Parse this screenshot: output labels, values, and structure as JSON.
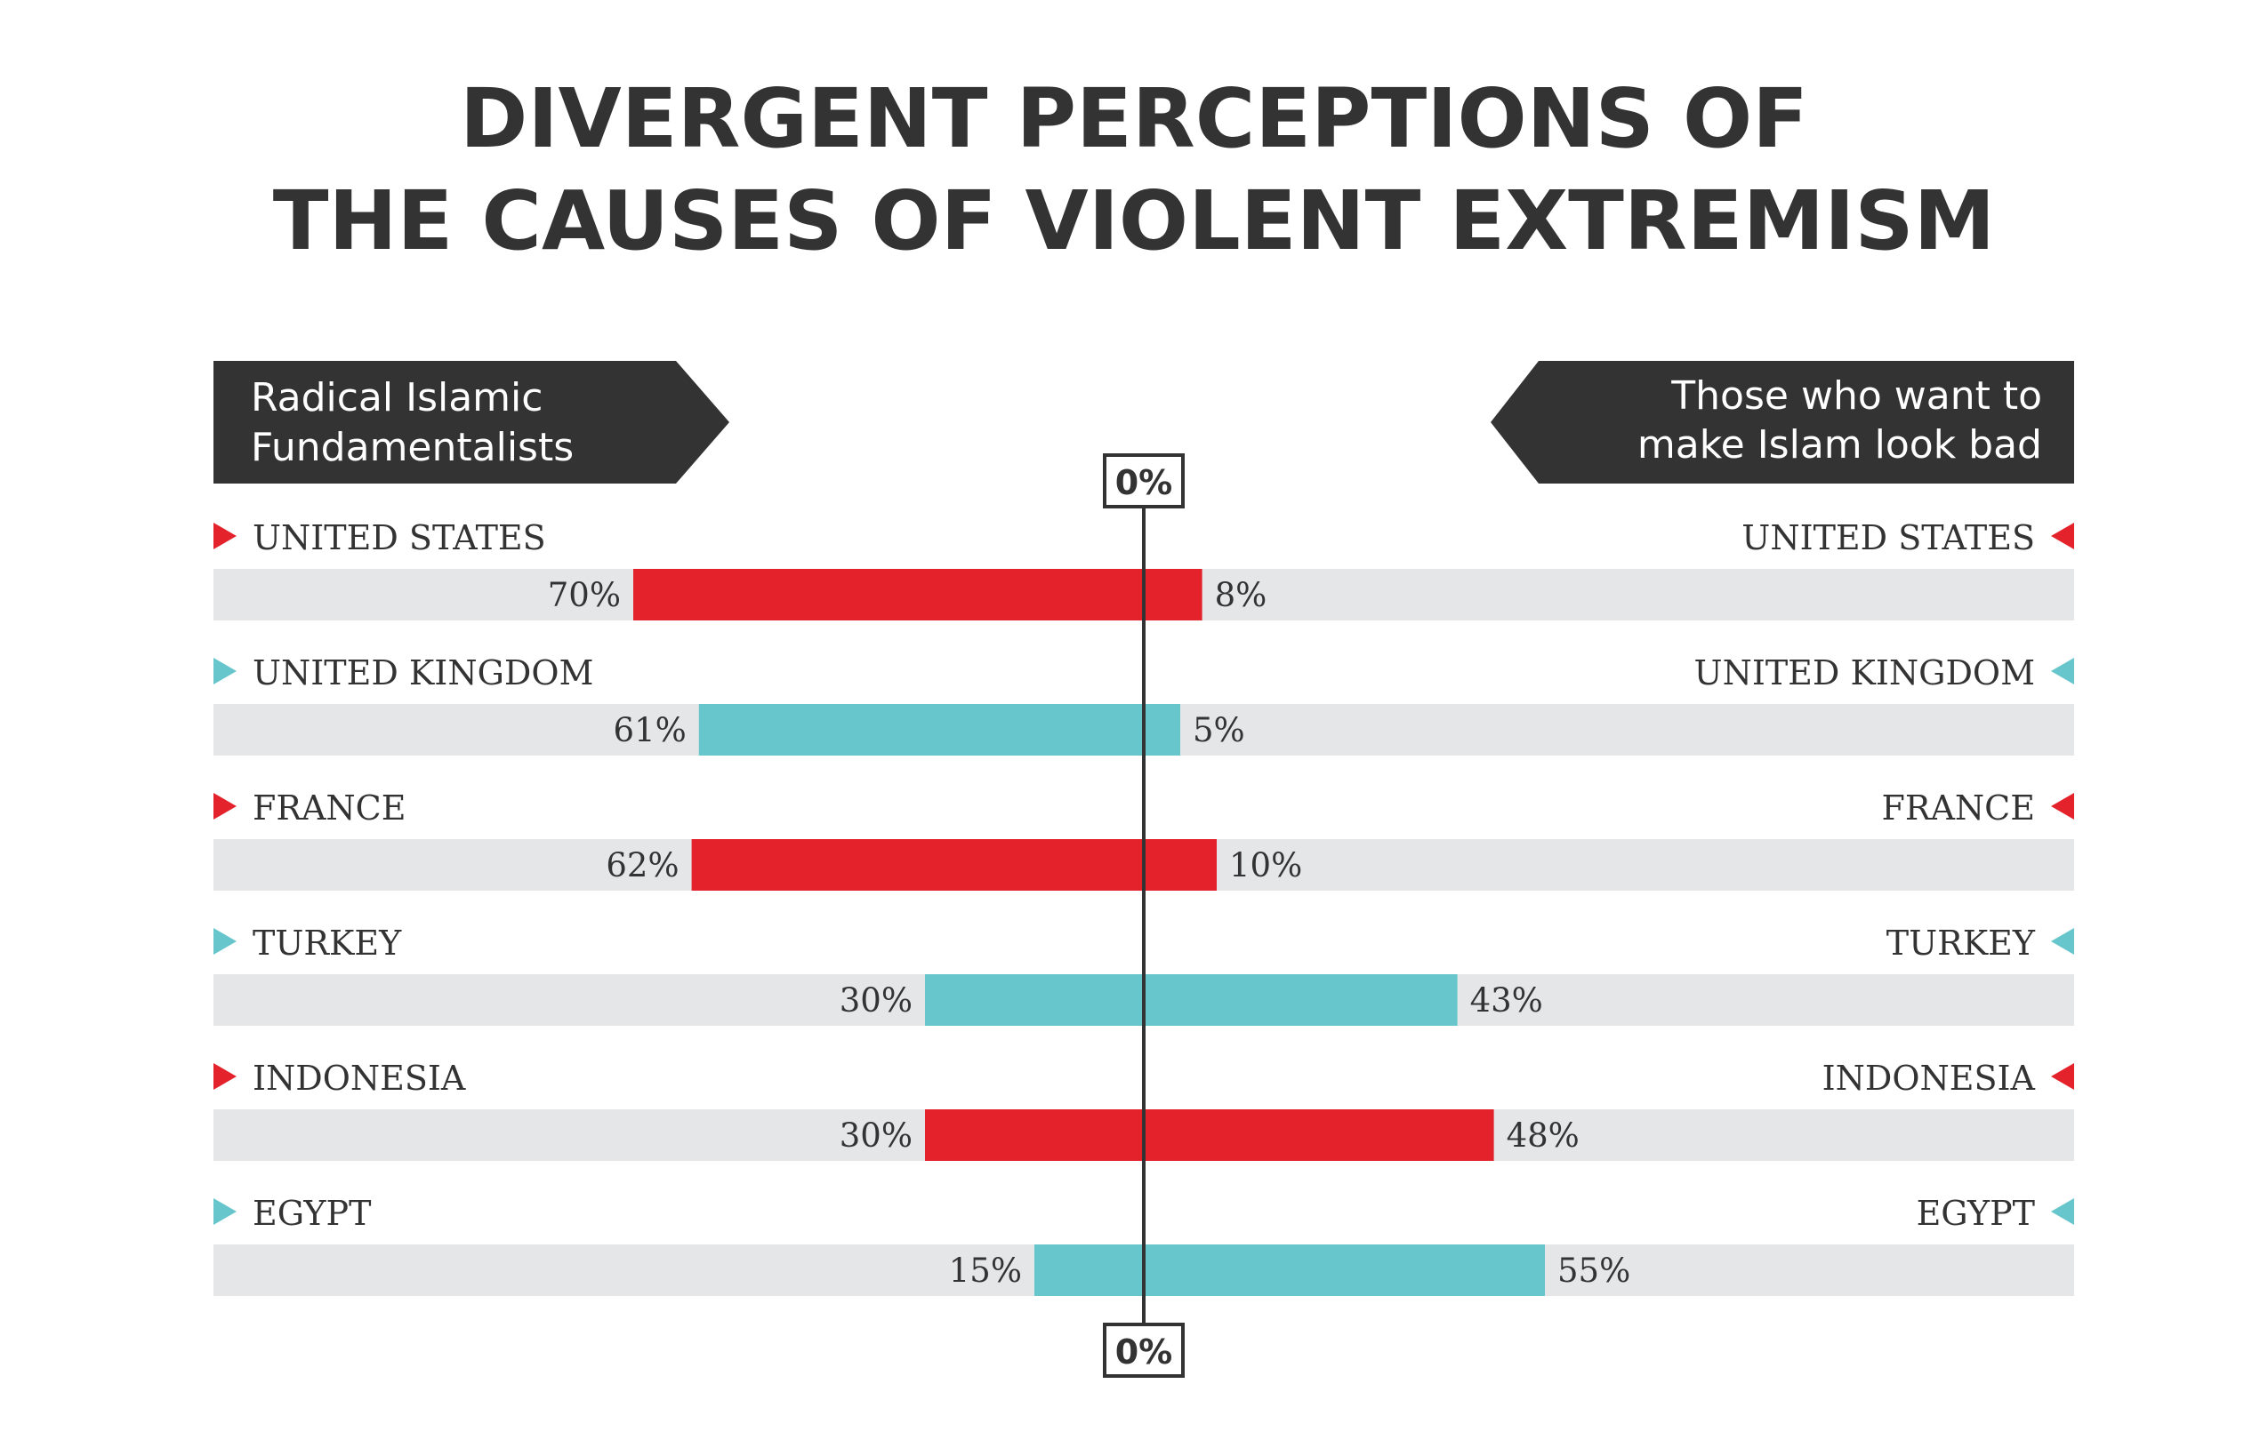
{
  "title_line1": "DIVERGENT PERCEPTIONS OF",
  "title_line2": "THE CAUSES OF VIOLENT EXTREMISM",
  "left_banner": [
    "Radical Islamic",
    "Fundamentalists"
  ],
  "right_banner": [
    "Those who want to",
    "make Islam look bad"
  ],
  "zero_label": "0%",
  "colors": {
    "red": "#e4222b",
    "teal": "#66c6cc",
    "track": "#e5e6e8",
    "dark": "#333333"
  },
  "chart_data": {
    "type": "bar",
    "orientation": "diverging-horizontal",
    "title": "DIVERGENT PERCEPTIONS OF THE CAUSES OF VIOLENT EXTREMISM",
    "categories": [
      "UNITED STATES",
      "UNITED KINGDOM",
      "FRANCE",
      "TURKEY",
      "INDONESIA",
      "EGYPT"
    ],
    "series": [
      {
        "name": "Radical Islamic Fundamentalists",
        "side": "left",
        "values": [
          70,
          61,
          62,
          30,
          30,
          15
        ]
      },
      {
        "name": "Those who want to make Islam look bad",
        "side": "right",
        "values": [
          8,
          5,
          10,
          43,
          48,
          55
        ]
      }
    ],
    "value_labels_left": [
      "70%",
      "61%",
      "62%",
      "30%",
      "30%",
      "15%"
    ],
    "value_labels_right": [
      "8%",
      "5%",
      "10%",
      "43%",
      "48%",
      "55%"
    ],
    "row_colors": [
      "red",
      "teal",
      "red",
      "teal",
      "red",
      "teal"
    ],
    "unit": "%"
  }
}
